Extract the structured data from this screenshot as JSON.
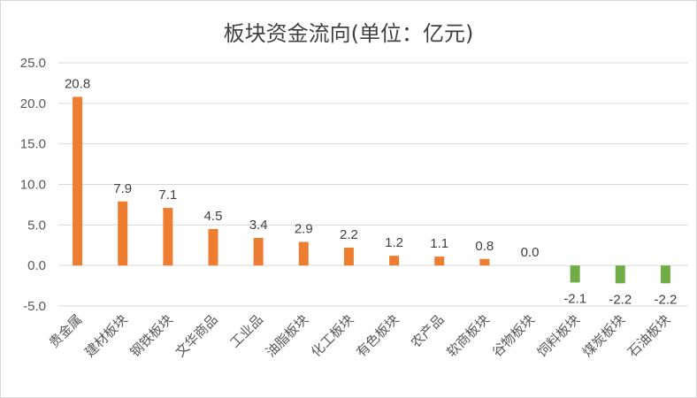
{
  "chart_data": {
    "type": "bar",
    "title": "板块资金流向(单位：亿元)",
    "xlabel": "",
    "ylabel": "",
    "ylim": [
      -5,
      25
    ],
    "yticks": [
      "25.0",
      "20.0",
      "15.0",
      "10.0",
      "5.0",
      "0.0",
      "-5.0"
    ],
    "ytick_values": [
      25,
      20,
      15,
      10,
      5,
      0,
      -5
    ],
    "grid": true,
    "legend": "none",
    "categories": [
      "贵金属",
      "建材板块",
      "钢铁板块",
      "文华商品",
      "工业品",
      "油脂板块",
      "化工板块",
      "有色板块",
      "农产品",
      "软商板块",
      "谷物板块",
      "饲料板块",
      "煤炭板块",
      "石油板块"
    ],
    "values": [
      20.8,
      7.9,
      7.1,
      4.5,
      3.4,
      2.9,
      2.2,
      1.2,
      1.1,
      0.8,
      0.0,
      -2.1,
      -2.2,
      -2.2
    ],
    "value_labels": [
      "20.8",
      "7.9",
      "7.1",
      "4.5",
      "3.4",
      "2.9",
      "2.2",
      "1.2",
      "1.1",
      "0.8",
      "0.0",
      "-2.1",
      "-2.2",
      "-2.2"
    ],
    "colors": {
      "positive": "#ED7D31",
      "negative": "#70AD47",
      "grid": "#d9d9d9"
    }
  }
}
